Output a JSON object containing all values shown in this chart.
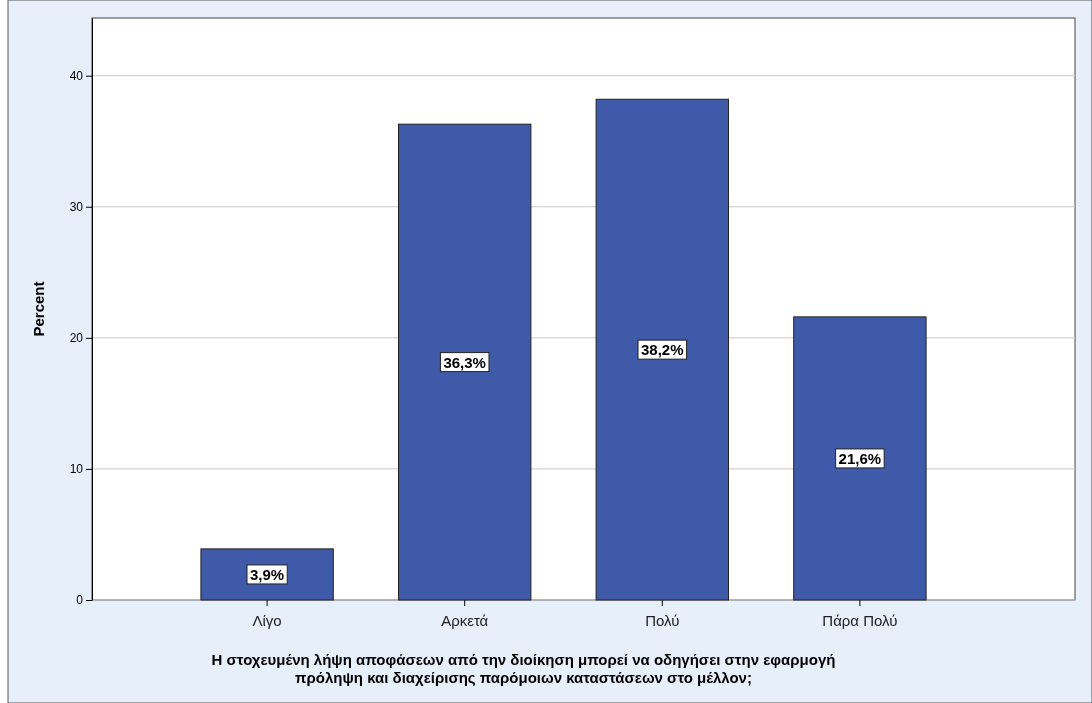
{
  "chart_data": {
    "type": "bar",
    "ylabel": "Percent",
    "xlabel": "Η στοχευμένη λήψη αποφάσεων από την διοίκηση μπορεί να οδηγήσει στην εφαρμογή πρόληψη και διαχείρισης παρόμοιων καταστάσεων στο μέλλον;",
    "categories": [
      "Λίγο",
      "Αρκετά",
      "Πολύ",
      "Πάρα Πολύ"
    ],
    "values": [
      3.9,
      36.3,
      38.2,
      21.6
    ],
    "value_labels": [
      "3,9%",
      "36,3%",
      "38,2%",
      "21,6%"
    ],
    "color": "#3f5aa8",
    "ylim": [
      0,
      44.4
    ],
    "yticks": [
      0,
      10,
      20,
      30,
      40
    ],
    "grid": "y"
  }
}
